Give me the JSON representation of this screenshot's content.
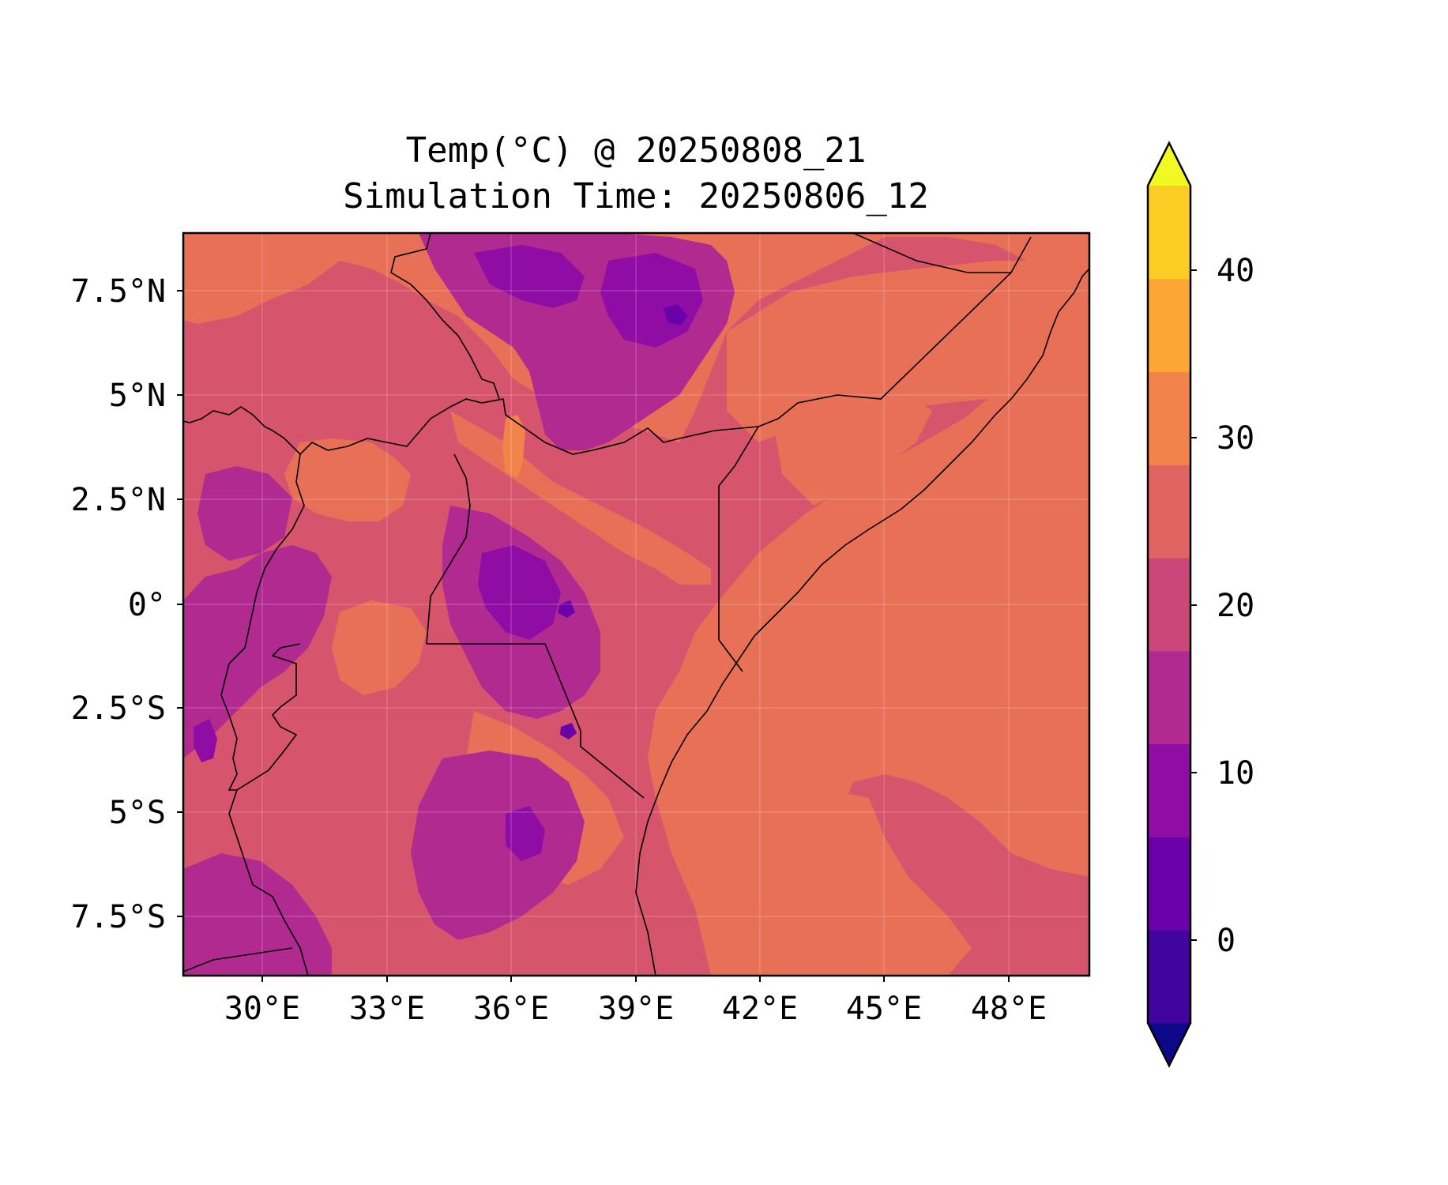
{
  "title_line1": "Temp(°C) @ 20250808_21",
  "title_line2": "Simulation Time: 20250806_12",
  "x_ticks": [
    "30°E",
    "33°E",
    "36°E",
    "39°E",
    "42°E",
    "45°E",
    "48°E"
  ],
  "y_ticks": [
    "7.5°N",
    "5°N",
    "2.5°N",
    "0°",
    "2.5°S",
    "5°S",
    "7.5°S"
  ],
  "colorbar": {
    "ticks": [
      "40",
      "30",
      "20",
      "10",
      "0"
    ],
    "levels": [
      "#0d0887",
      "#41049d",
      "#6a00a8",
      "#8f0da4",
      "#b12a90",
      "#cb4679",
      "#e16462",
      "#f2844b",
      "#fca636",
      "#fcce25",
      "#f0f921"
    ]
  },
  "chart_data": {
    "type": "heatmap",
    "title": "Temp(°C) @ 20250808_21\nSimulation Time: 20250806_12",
    "x_range": [
      28,
      50
    ],
    "y_range": [
      -9,
      9
    ],
    "colorbar_range": [
      -5,
      45
    ],
    "colorbar_ticks": [
      0,
      10,
      20,
      30,
      40
    ],
    "contour_interval": 5,
    "colormap": "plasma",
    "extend": "both"
  }
}
